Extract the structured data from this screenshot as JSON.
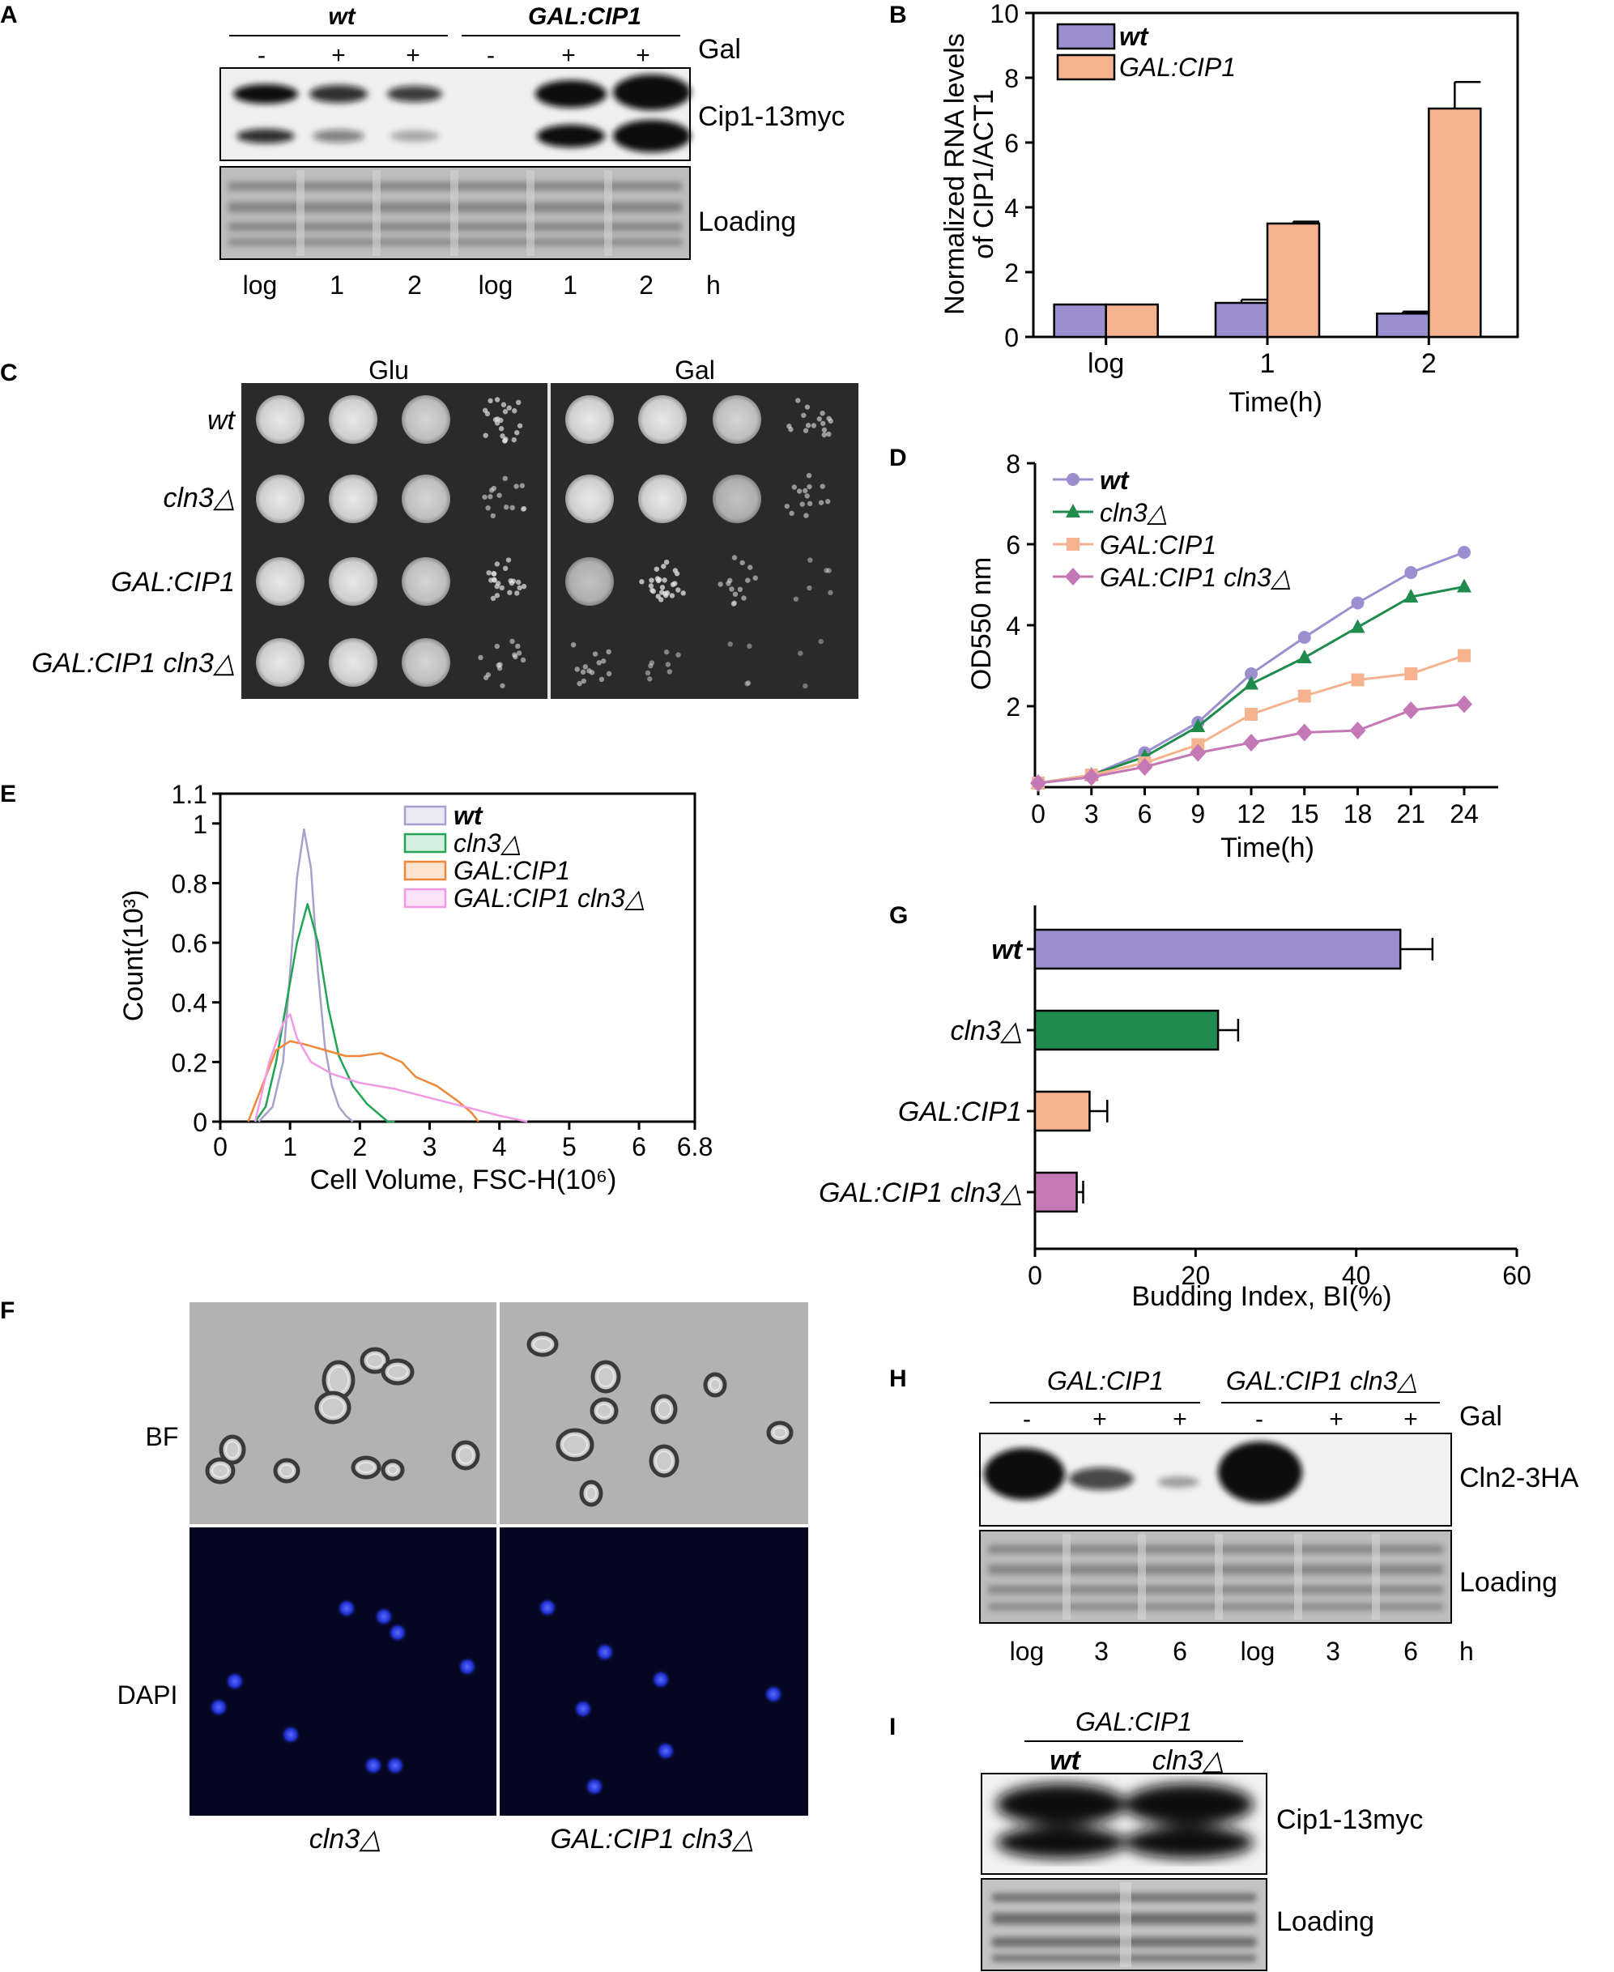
{
  "panels": {
    "A": "A",
    "B": "B",
    "C": "C",
    "D": "D",
    "E": "E",
    "F": "F",
    "G": "G",
    "H": "H",
    "I": "I"
  },
  "colors": {
    "wt": "#9b8fd0",
    "cln3": "#1f8b4c",
    "galcip1": "#f4b38e",
    "galcip1_cln3": "#c479b6",
    "e_wt": "#a9a0cc",
    "e_cln3": "#23a455",
    "e_galcip1": "#f0883a",
    "e_galcip1_cln3": "#f09ae6"
  },
  "panel_a": {
    "group_labels": [
      "wt",
      "GAL:CIP1"
    ],
    "gal_signs": [
      "-",
      "+",
      "+",
      "-",
      "+",
      "+"
    ],
    "gal_label": "Gal",
    "blot_labels": [
      "Cip1-13myc",
      "Loading"
    ],
    "time_labels": [
      "log",
      "1",
      "2",
      "log",
      "1",
      "2"
    ],
    "time_unit": "h"
  },
  "panel_b": {
    "chart_data": {
      "type": "bar",
      "categories": [
        "log",
        "1",
        "2"
      ],
      "series": [
        {
          "name": "wt",
          "values": [
            1.0,
            1.05,
            0.72
          ],
          "errors": [
            0.0,
            0.1,
            0.06
          ]
        },
        {
          "name": "GAL:CIP1",
          "values": [
            1.0,
            3.5,
            7.05
          ],
          "errors": [
            0.0,
            0.06,
            0.82
          ]
        }
      ],
      "ylabel": [
        "Normalized RNA levels",
        "of CIP1/ACT1"
      ],
      "xlabel": "Time(h)",
      "ylim": [
        0,
        10
      ],
      "yticks": [
        "0",
        "2",
        "4",
        "6",
        "8",
        "10"
      ],
      "legend": "top-left"
    }
  },
  "panel_c": {
    "column_labels": [
      "Glu",
      "Gal"
    ],
    "row_labels": [
      "wt",
      "cln3△",
      "GAL:CIP1",
      "GAL:CIP1 cln3△"
    ]
  },
  "panel_d": {
    "chart_data": {
      "type": "line",
      "x": [
        0,
        3,
        6,
        9,
        12,
        15,
        18,
        21,
        24
      ],
      "series": [
        {
          "name": "wt",
          "values": [
            0.1,
            0.3,
            0.85,
            1.6,
            2.8,
            3.7,
            4.55,
            5.3,
            5.8
          ]
        },
        {
          "name": "cln3△",
          "values": [
            0.1,
            0.3,
            0.75,
            1.5,
            2.55,
            3.2,
            3.95,
            4.7,
            4.95
          ]
        },
        {
          "name": "GAL:CIP1",
          "values": [
            0.1,
            0.3,
            0.6,
            1.05,
            1.8,
            2.25,
            2.65,
            2.8,
            3.25
          ]
        },
        {
          "name": "GAL:CIP1 cln3△",
          "values": [
            0.1,
            0.25,
            0.5,
            0.85,
            1.1,
            1.35,
            1.4,
            1.9,
            2.05
          ]
        }
      ],
      "ylabel": "OD550 nm",
      "xlabel": "Time(h)",
      "ylim": [
        0,
        8
      ],
      "yticks": [
        "2",
        "4",
        "6",
        "8"
      ],
      "xticks": [
        "0",
        "3",
        "6",
        "9",
        "12",
        "15",
        "18",
        "21",
        "24"
      ],
      "legend": "top-left"
    }
  },
  "panel_e": {
    "chart_data": {
      "type": "line",
      "series": [
        {
          "name": "wt",
          "points": [
            [
              0.55,
              0
            ],
            [
              0.75,
              0.05
            ],
            [
              0.9,
              0.2
            ],
            [
              1.0,
              0.5
            ],
            [
              1.1,
              0.82
            ],
            [
              1.2,
              0.98
            ],
            [
              1.3,
              0.85
            ],
            [
              1.4,
              0.5
            ],
            [
              1.5,
              0.25
            ],
            [
              1.6,
              0.12
            ],
            [
              1.7,
              0.05
            ],
            [
              1.8,
              0.02
            ],
            [
              1.9,
              0
            ]
          ]
        },
        {
          "name": "cln3△",
          "points": [
            [
              0.5,
              0
            ],
            [
              0.65,
              0.05
            ],
            [
              0.8,
              0.2
            ],
            [
              0.95,
              0.4
            ],
            [
              1.1,
              0.6
            ],
            [
              1.25,
              0.73
            ],
            [
              1.4,
              0.6
            ],
            [
              1.55,
              0.38
            ],
            [
              1.7,
              0.22
            ],
            [
              1.9,
              0.12
            ],
            [
              2.1,
              0.06
            ],
            [
              2.4,
              0
            ],
            [
              2.5,
              0
            ]
          ]
        },
        {
          "name": "GAL:CIP1",
          "points": [
            [
              0.4,
              0
            ],
            [
              0.6,
              0.12
            ],
            [
              0.8,
              0.24
            ],
            [
              1.0,
              0.27
            ],
            [
              1.2,
              0.26
            ],
            [
              1.5,
              0.24
            ],
            [
              1.8,
              0.22
            ],
            [
              2.0,
              0.22
            ],
            [
              2.3,
              0.23
            ],
            [
              2.6,
              0.2
            ],
            [
              2.8,
              0.15
            ],
            [
              3.1,
              0.12
            ],
            [
              3.4,
              0.07
            ],
            [
              3.6,
              0.03
            ],
            [
              3.7,
              0
            ]
          ]
        },
        {
          "name": "GAL:CIP1 cln3△",
          "points": [
            [
              0.5,
              0
            ],
            [
              0.7,
              0.2
            ],
            [
              0.9,
              0.33
            ],
            [
              1.0,
              0.36
            ],
            [
              1.1,
              0.28
            ],
            [
              1.3,
              0.2
            ],
            [
              1.6,
              0.16
            ],
            [
              2.0,
              0.13
            ],
            [
              2.5,
              0.11
            ],
            [
              3.0,
              0.08
            ],
            [
              3.5,
              0.05
            ],
            [
              4.0,
              0.02
            ],
            [
              4.4,
              0
            ]
          ]
        }
      ],
      "ylabel": "Count(10³)",
      "xlabel": "Cell Volume, FSC-H(10⁶)",
      "xlim": [
        0,
        6.8
      ],
      "ylim": [
        0,
        1.1
      ],
      "xticks": [
        "0",
        "1",
        "2",
        "3",
        "4",
        "5",
        "6",
        "6.8"
      ],
      "yticks": [
        "0",
        "0.2",
        "0.4",
        "0.6",
        "0.8",
        "1",
        "1.1"
      ],
      "legend": "top-right"
    }
  },
  "panel_f": {
    "row_labels": [
      "BF",
      "DAPI"
    ],
    "column_labels": [
      "cln3△",
      "GAL:CIP1 cln3△"
    ]
  },
  "panel_g": {
    "chart_data": {
      "type": "bar",
      "orientation": "horizontal",
      "categories": [
        "wt",
        "cln3△",
        "GAL:CIP1",
        "GAL:CIP1 cln3△"
      ],
      "values": [
        45.5,
        22.8,
        6.8,
        5.2
      ],
      "errors": [
        4.0,
        2.5,
        2.2,
        0.8
      ],
      "xlabel": "Budding Index, BI(%)",
      "xlim": [
        0,
        60
      ],
      "xticks": [
        "0",
        "20",
        "40",
        "60"
      ]
    }
  },
  "panel_h": {
    "group_labels": [
      "GAL:CIP1",
      "GAL:CIP1 cln3△"
    ],
    "gal_signs": [
      "-",
      "+",
      "+",
      "-",
      "+",
      "+"
    ],
    "gal_label": "Gal",
    "blot_labels": [
      "Cln2-3HA",
      "Loading"
    ],
    "time_labels": [
      "log",
      "3",
      "6",
      "log",
      "3",
      "6"
    ],
    "time_unit": "h"
  },
  "panel_i": {
    "group_label": "GAL:CIP1",
    "lane_labels": [
      "wt",
      "cln3△"
    ],
    "blot_labels": [
      "Cip1-13myc",
      "Loading"
    ]
  }
}
